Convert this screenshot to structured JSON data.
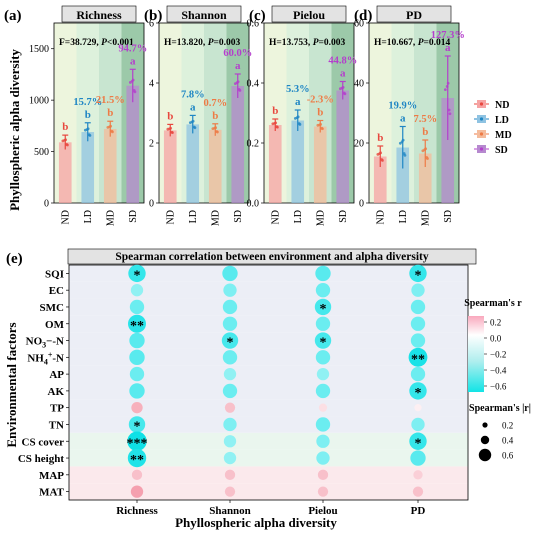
{
  "bar_panels": {
    "ylabel": "Phyllospheric alpha diversity",
    "groups": [
      "ND",
      "LD",
      "MD",
      "SD"
    ],
    "group_colors": [
      "#F6A3A3",
      "#8FC3E2",
      "#F4BB9B",
      "#B689CF"
    ],
    "label_colors": [
      "#E8473E",
      "#1F86C4",
      "#EE7A45",
      "#B43FCC"
    ],
    "panel_bg": [
      "#EDF5DD",
      "#DDF1DC",
      "#C8E5D0",
      "#9CC9A9"
    ],
    "panels": [
      {
        "tag": "(a)",
        "title": "Richness",
        "stat_prefix": "F=38.729, ",
        "stat_p": "P",
        "stat_suffix": "<0.001",
        "yticks": [
          "0",
          "500",
          "1000",
          "1500"
        ],
        "ylim": [
          0,
          1750
        ],
        "values": [
          590,
          690,
          720,
          1140
        ],
        "errors": [
          70,
          90,
          75,
          160
        ],
        "letters": [
          "b",
          "b",
          "b",
          "a"
        ],
        "pct": [
          "",
          "15.7%",
          "21.5%",
          "94.7%"
        ]
      },
      {
        "tag": "(b)",
        "title": "Shannon",
        "stat_prefix": "H=13.820, ",
        "stat_p": "P",
        "stat_suffix": "=0.003",
        "yticks": [
          "0",
          "2",
          "4",
          "6"
        ],
        "ylim": [
          0,
          6
        ],
        "values": [
          2.42,
          2.62,
          2.44,
          3.9
        ],
        "errors": [
          0.2,
          0.3,
          0.2,
          0.4
        ],
        "letters": [
          "b",
          "a",
          "b",
          "a"
        ],
        "pct": [
          "",
          "7.8%",
          "0.7%",
          "60.0%"
        ]
      },
      {
        "tag": "(c)",
        "title": "Pielou",
        "stat_prefix": "H=13.753, ",
        "stat_p": "P",
        "stat_suffix": "=0.003",
        "yticks": [
          "0.0",
          "0.2",
          "0.4",
          "0.6"
        ],
        "ylim": [
          0,
          0.6
        ],
        "values": [
          0.26,
          0.275,
          0.255,
          0.375
        ],
        "errors": [
          0.02,
          0.035,
          0.02,
          0.03
        ],
        "letters": [
          "b",
          "a",
          "b",
          "a"
        ],
        "pct": [
          "",
          "5.3%",
          "-2.3%",
          "44.8%"
        ]
      },
      {
        "tag": "(d)",
        "title": "PD",
        "stat_prefix": "H=10.667, ",
        "stat_p": "P",
        "stat_suffix": "=0.014",
        "yticks": [
          "0",
          "20",
          "40",
          "60"
        ],
        "ylim": [
          0,
          60
        ],
        "values": [
          15.5,
          18.5,
          16.5,
          35
        ],
        "errors": [
          3.5,
          7,
          4.5,
          14
        ],
        "letters": [
          "b",
          "a",
          "b",
          "a"
        ],
        "pct": [
          "",
          "19.9%",
          "7.5%",
          "127.3%"
        ]
      }
    ],
    "legend": [
      "ND",
      "LD",
      "MD",
      "SD"
    ]
  },
  "heatmap": {
    "tag": "(e)",
    "title": "Spearman correlation between environment and alpha diversity",
    "ylabel": "Environmental factors",
    "xlabel": "Phyllospheric alpha diversity",
    "columns": [
      "Richness",
      "Shannon",
      "Pielou",
      "PD"
    ],
    "rows": [
      "SQI",
      "EC",
      "SMC",
      "OM",
      "NO3-N",
      "NH4+-N",
      "AP",
      "AK",
      "TP",
      "TN",
      "CS cover",
      "CS height",
      "MAP",
      "MAT"
    ],
    "color_legend_title": "Spearman's r",
    "color_ticks": [
      "0.2",
      "0.0",
      "−0.2",
      "−0.4",
      "−0.6"
    ],
    "size_legend_title": "Spearman's |r|",
    "size_ticks": [
      "0.2",
      "0.4",
      "0.6"
    ]
  },
  "chart_data": {
    "type": "heatmap",
    "title": "Spearman correlation between environment and alpha diversity",
    "xlabel": "Phyllospheric alpha diversity",
    "ylabel": "Environmental factors",
    "x": [
      "Richness",
      "Shannon",
      "Pielou",
      "PD"
    ],
    "y": [
      "SQI",
      "EC",
      "SMC",
      "OM",
      "NO3-N",
      "NH4+-N",
      "AP",
      "AK",
      "TP",
      "TN",
      "CS cover",
      "CS height",
      "MAP",
      "MAT"
    ],
    "values": [
      [
        -0.55,
        -0.45,
        -0.45,
        -0.55
      ],
      [
        -0.3,
        -0.35,
        -0.4,
        -0.35
      ],
      [
        -0.4,
        -0.4,
        -0.5,
        -0.4
      ],
      [
        -0.58,
        -0.4,
        -0.4,
        -0.4
      ],
      [
        -0.45,
        -0.5,
        -0.5,
        -0.4
      ],
      [
        -0.45,
        -0.4,
        -0.4,
        -0.62
      ],
      [
        -0.4,
        -0.3,
        -0.3,
        -0.4
      ],
      [
        -0.45,
        -0.4,
        -0.4,
        -0.55
      ],
      [
        0.25,
        0.2,
        0.1,
        0.05
      ],
      [
        -0.5,
        -0.35,
        -0.4,
        -0.35
      ],
      [
        -0.65,
        -0.3,
        -0.35,
        -0.55
      ],
      [
        -0.6,
        -0.3,
        -0.35,
        -0.45
      ],
      [
        0.2,
        0.2,
        0.2,
        0.15
      ],
      [
        0.3,
        0.2,
        0.2,
        0.2
      ]
    ],
    "significance": [
      [
        "*",
        "",
        "",
        "*"
      ],
      [
        "",
        "",
        "",
        ""
      ],
      [
        "",
        "",
        "*",
        ""
      ],
      [
        "**",
        "",
        "",
        ""
      ],
      [
        "",
        "*",
        "*",
        ""
      ],
      [
        "",
        "",
        "",
        "**"
      ],
      [
        "",
        "",
        "",
        ""
      ],
      [
        "",
        "",
        "",
        "*"
      ],
      [
        "",
        "",
        "",
        ""
      ],
      [
        "*",
        "",
        "",
        ""
      ],
      [
        "***",
        "",
        "",
        "*"
      ],
      [
        "**",
        "",
        "",
        ""
      ],
      [
        "",
        "",
        "",
        ""
      ],
      [
        "",
        "",
        "",
        ""
      ]
    ],
    "bar_charts": [
      {
        "title": "Richness",
        "type": "bar",
        "categories": [
          "ND",
          "LD",
          "MD",
          "SD"
        ],
        "values": [
          590,
          690,
          720,
          1140
        ],
        "ylim": [
          0,
          1750
        ]
      },
      {
        "title": "Shannon",
        "type": "bar",
        "categories": [
          "ND",
          "LD",
          "MD",
          "SD"
        ],
        "values": [
          2.42,
          2.62,
          2.44,
          3.9
        ],
        "ylim": [
          0,
          6
        ]
      },
      {
        "title": "Pielou",
        "type": "bar",
        "categories": [
          "ND",
          "LD",
          "MD",
          "SD"
        ],
        "values": [
          0.26,
          0.275,
          0.255,
          0.375
        ],
        "ylim": [
          0,
          0.6
        ]
      },
      {
        "title": "PD",
        "type": "bar",
        "categories": [
          "ND",
          "LD",
          "MD",
          "SD"
        ],
        "values": [
          15.5,
          18.5,
          16.5,
          35
        ],
        "ylim": [
          0,
          60
        ]
      }
    ]
  }
}
